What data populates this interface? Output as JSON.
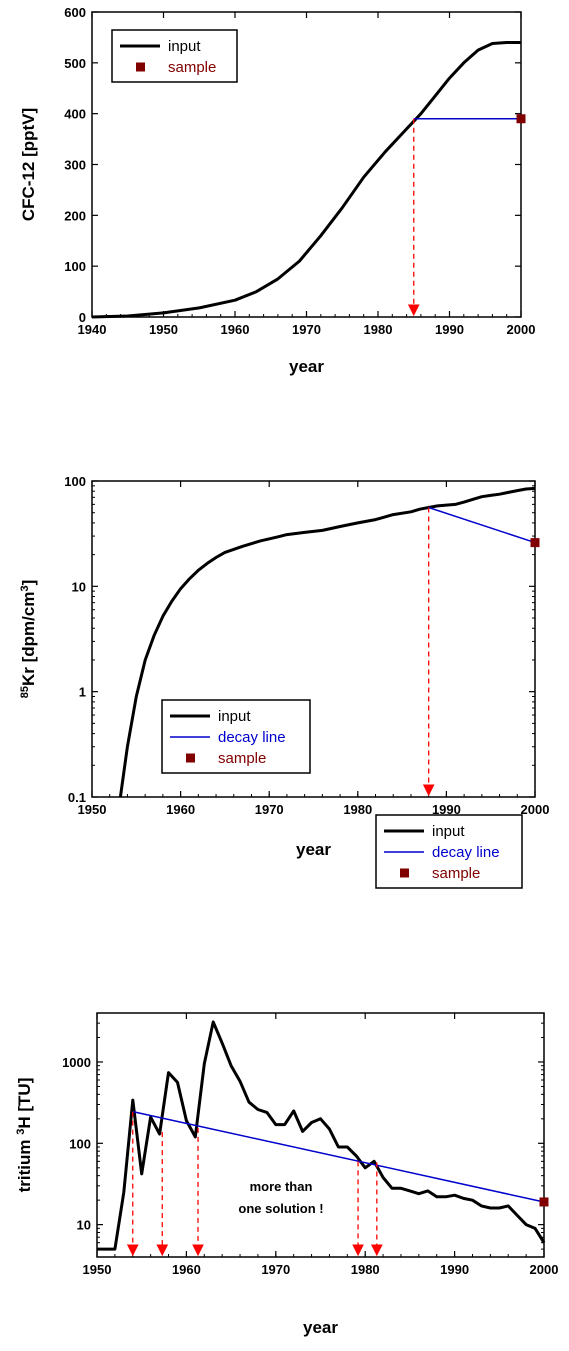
{
  "colors": {
    "input": "#000000",
    "decay_line": "#0000cc",
    "sample": "#800000",
    "arrow": "#ff0000",
    "axis": "#000000"
  },
  "chart_data": [
    {
      "type": "line",
      "title": "",
      "xlabel": "year",
      "ylabel": "CFC-12 [pptV]",
      "xlim": [
        1940,
        2000
      ],
      "ylim": [
        0,
        600
      ],
      "yscale": "linear",
      "xticks": [
        1940,
        1950,
        1960,
        1970,
        1980,
        1990,
        2000
      ],
      "yticks": [
        0,
        100,
        200,
        300,
        400,
        500,
        600
      ],
      "legend": [
        {
          "label": "input",
          "kind": "line",
          "color": "#000000"
        },
        {
          "label": "sample",
          "kind": "marker",
          "color": "#800000"
        }
      ],
      "legend_position": "top-left",
      "series": [
        {
          "name": "input",
          "x": [
            1940,
            1945,
            1950,
            1955,
            1960,
            1963,
            1966,
            1969,
            1972,
            1975,
            1978,
            1981,
            1984,
            1986,
            1988,
            1990,
            1992,
            1994,
            1996,
            1998,
            2000
          ],
          "y": [
            0,
            2,
            8,
            18,
            33,
            50,
            75,
            110,
            160,
            215,
            275,
            325,
            370,
            400,
            435,
            470,
            500,
            525,
            538,
            540,
            540
          ]
        },
        {
          "name": "sample to date",
          "kind": "horizontal",
          "x": [
            1985,
            2000
          ],
          "y": [
            390,
            390
          ]
        }
      ],
      "sample": {
        "x": 2000,
        "y": 390
      },
      "arrows": [
        {
          "x": 1985,
          "y_from": 390
        }
      ]
    },
    {
      "type": "line",
      "title": "",
      "xlabel": "year",
      "ylabel": "Kr [dpm/cm ]",
      "ylabel_parts": {
        "pre_sup": "85",
        "main": "Kr [dpm/cm",
        "sup": "3",
        "post": "]"
      },
      "xlim": [
        1950,
        2000
      ],
      "ylim": [
        0.1,
        100
      ],
      "yscale": "log",
      "xticks": [
        1950,
        1960,
        1970,
        1980,
        1990,
        2000
      ],
      "yticks": [
        0.1,
        1,
        10,
        100
      ],
      "legend": [
        {
          "label": "input",
          "kind": "line",
          "color": "#000000"
        },
        {
          "label": "decay line",
          "kind": "line",
          "color": "#0000cc"
        },
        {
          "label": "sample",
          "kind": "marker",
          "color": "#800000"
        }
      ],
      "legend_position": "bottom-left",
      "series": [
        {
          "name": "input",
          "x": [
            1953.2,
            1954,
            1955,
            1956,
            1957,
            1958,
            1959,
            1960,
            1961,
            1962,
            1963,
            1964,
            1965,
            1967,
            1969,
            1971,
            1972,
            1974,
            1976,
            1978,
            1980,
            1982,
            1984,
            1986,
            1987,
            1988,
            1989,
            1990,
            1991,
            1992,
            1993,
            1994,
            1995,
            1996,
            1997,
            1998,
            1999,
            2000
          ],
          "y": [
            0.1,
            0.3,
            0.9,
            2.0,
            3.4,
            5.2,
            7.2,
            9.5,
            11.8,
            14.2,
            16.5,
            18.8,
            21,
            24,
            27,
            29.5,
            31,
            32.5,
            34,
            37,
            40,
            43,
            48,
            51,
            54,
            56,
            58,
            59,
            60,
            63,
            67,
            71,
            73,
            75,
            78,
            81,
            84,
            85
          ]
        },
        {
          "name": "decay line",
          "x": [
            1988,
            2000
          ],
          "y": [
            56,
            26
          ]
        }
      ],
      "sample": {
        "x": 2000,
        "y": 26
      },
      "arrows": [
        {
          "x": 1988,
          "y_from": 56
        }
      ]
    },
    {
      "type": "line",
      "title": "",
      "xlabel": "year",
      "ylabel": "tritium H [TU]",
      "ylabel_parts": {
        "main": "tritium ",
        "sup": "3",
        "post": "H [TU]"
      },
      "xlim": [
        1950,
        2000
      ],
      "ylim": [
        4,
        4000
      ],
      "yscale": "log",
      "xticks": [
        1950,
        1960,
        1970,
        1980,
        1990,
        2000
      ],
      "yticks": [
        10,
        100,
        1000
      ],
      "legend": [
        {
          "label": "input",
          "kind": "line",
          "color": "#000000"
        },
        {
          "label": "decay line",
          "kind": "line",
          "color": "#0000cc"
        },
        {
          "label": "sample",
          "kind": "marker",
          "color": "#800000"
        }
      ],
      "legend_position": "top-right",
      "annotation": [
        "more than",
        "one solution !"
      ],
      "series": [
        {
          "name": "input",
          "x": [
            1950,
            1952,
            1953,
            1954,
            1955,
            1956,
            1957,
            1958,
            1959,
            1960,
            1961,
            1962,
            1963,
            1964,
            1965,
            1966,
            1967,
            1968,
            1969,
            1970,
            1971,
            1972,
            1973,
            1974,
            1975,
            1976,
            1977,
            1978,
            1979,
            1980,
            1981,
            1982,
            1983,
            1984,
            1985,
            1986,
            1987,
            1988,
            1989,
            1990,
            1991,
            1992,
            1993,
            1994,
            1995,
            1996,
            1997,
            1998,
            1999,
            2000
          ],
          "y": [
            5,
            5,
            25,
            340,
            42,
            210,
            130,
            740,
            560,
            190,
            120,
            950,
            3100,
            1700,
            900,
            580,
            320,
            260,
            240,
            170,
            170,
            250,
            140,
            180,
            200,
            150,
            90,
            90,
            70,
            50,
            60,
            38,
            28,
            28,
            26,
            24,
            26,
            22,
            22,
            23,
            21,
            20,
            17,
            16,
            16,
            17,
            13,
            10,
            9,
            6
          ]
        },
        {
          "name": "decay line",
          "x": [
            1954,
            2000
          ],
          "y": [
            245,
            19
          ]
        }
      ],
      "sample": {
        "x": 2000,
        "y": 19
      },
      "arrows": [
        {
          "x": 1954,
          "y_from": 245
        },
        {
          "x": 1957.3,
          "y_from": 137
        },
        {
          "x": 1961.3,
          "y_from": 155
        },
        {
          "x": 1979.2,
          "y_from": 60
        },
        {
          "x": 1981.3,
          "y_from": 58
        }
      ]
    }
  ]
}
